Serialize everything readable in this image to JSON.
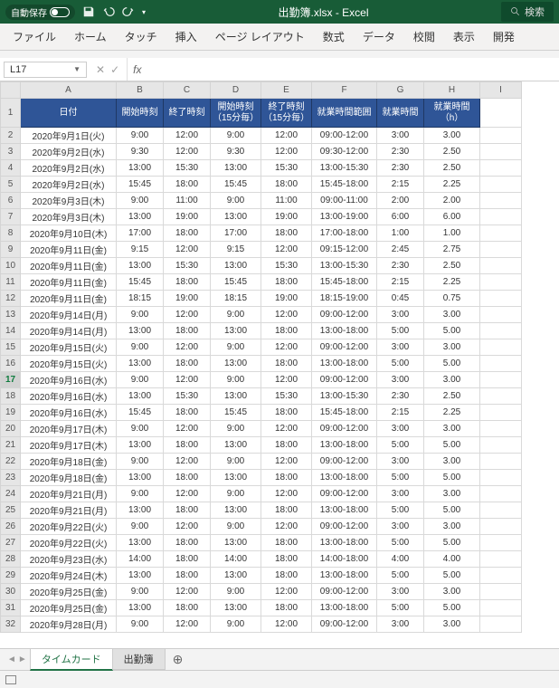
{
  "titlebar": {
    "autosave": "自動保存",
    "title": "出勤簿.xlsx - Excel",
    "search": "検索"
  },
  "ribbon": {
    "tabs": [
      "ファイル",
      "ホーム",
      "タッチ",
      "挿入",
      "ページ レイアウト",
      "数式",
      "データ",
      "校閲",
      "表示",
      "開発"
    ]
  },
  "namebox": "L17",
  "columns": [
    "A",
    "B",
    "C",
    "D",
    "E",
    "F",
    "G",
    "H",
    "I"
  ],
  "headers": [
    "日付",
    "開始時刻",
    "終了時刻",
    "開始時刻（15分毎）",
    "終了時刻（15分毎）",
    "就業時間範囲",
    "就業時間",
    "就業時間（h）"
  ],
  "rows": [
    [
      "2020年9月1日(火)",
      "9:00",
      "12:00",
      "9:00",
      "12:00",
      "09:00-12:00",
      "3:00",
      "3.00"
    ],
    [
      "2020年9月2日(水)",
      "9:30",
      "12:00",
      "9:30",
      "12:00",
      "09:30-12:00",
      "2:30",
      "2.50"
    ],
    [
      "2020年9月2日(水)",
      "13:00",
      "15:30",
      "13:00",
      "15:30",
      "13:00-15:30",
      "2:30",
      "2.50"
    ],
    [
      "2020年9月2日(水)",
      "15:45",
      "18:00",
      "15:45",
      "18:00",
      "15:45-18:00",
      "2:15",
      "2.25"
    ],
    [
      "2020年9月3日(木)",
      "9:00",
      "11:00",
      "9:00",
      "11:00",
      "09:00-11:00",
      "2:00",
      "2.00"
    ],
    [
      "2020年9月3日(木)",
      "13:00",
      "19:00",
      "13:00",
      "19:00",
      "13:00-19:00",
      "6:00",
      "6.00"
    ],
    [
      "2020年9月10日(木)",
      "17:00",
      "18:00",
      "17:00",
      "18:00",
      "17:00-18:00",
      "1:00",
      "1.00"
    ],
    [
      "2020年9月11日(金)",
      "9:15",
      "12:00",
      "9:15",
      "12:00",
      "09:15-12:00",
      "2:45",
      "2.75"
    ],
    [
      "2020年9月11日(金)",
      "13:00",
      "15:30",
      "13:00",
      "15:30",
      "13:00-15:30",
      "2:30",
      "2.50"
    ],
    [
      "2020年9月11日(金)",
      "15:45",
      "18:00",
      "15:45",
      "18:00",
      "15:45-18:00",
      "2:15",
      "2.25"
    ],
    [
      "2020年9月11日(金)",
      "18:15",
      "19:00",
      "18:15",
      "19:00",
      "18:15-19:00",
      "0:45",
      "0.75"
    ],
    [
      "2020年9月14日(月)",
      "9:00",
      "12:00",
      "9:00",
      "12:00",
      "09:00-12:00",
      "3:00",
      "3.00"
    ],
    [
      "2020年9月14日(月)",
      "13:00",
      "18:00",
      "13:00",
      "18:00",
      "13:00-18:00",
      "5:00",
      "5.00"
    ],
    [
      "2020年9月15日(火)",
      "9:00",
      "12:00",
      "9:00",
      "12:00",
      "09:00-12:00",
      "3:00",
      "3.00"
    ],
    [
      "2020年9月15日(火)",
      "13:00",
      "18:00",
      "13:00",
      "18:00",
      "13:00-18:00",
      "5:00",
      "5.00"
    ],
    [
      "2020年9月16日(水)",
      "9:00",
      "12:00",
      "9:00",
      "12:00",
      "09:00-12:00",
      "3:00",
      "3.00"
    ],
    [
      "2020年9月16日(水)",
      "13:00",
      "15:30",
      "13:00",
      "15:30",
      "13:00-15:30",
      "2:30",
      "2.50"
    ],
    [
      "2020年9月16日(水)",
      "15:45",
      "18:00",
      "15:45",
      "18:00",
      "15:45-18:00",
      "2:15",
      "2.25"
    ],
    [
      "2020年9月17日(木)",
      "9:00",
      "12:00",
      "9:00",
      "12:00",
      "09:00-12:00",
      "3:00",
      "3.00"
    ],
    [
      "2020年9月17日(木)",
      "13:00",
      "18:00",
      "13:00",
      "18:00",
      "13:00-18:00",
      "5:00",
      "5.00"
    ],
    [
      "2020年9月18日(金)",
      "9:00",
      "12:00",
      "9:00",
      "12:00",
      "09:00-12:00",
      "3:00",
      "3.00"
    ],
    [
      "2020年9月18日(金)",
      "13:00",
      "18:00",
      "13:00",
      "18:00",
      "13:00-18:00",
      "5:00",
      "5.00"
    ],
    [
      "2020年9月21日(月)",
      "9:00",
      "12:00",
      "9:00",
      "12:00",
      "09:00-12:00",
      "3:00",
      "3.00"
    ],
    [
      "2020年9月21日(月)",
      "13:00",
      "18:00",
      "13:00",
      "18:00",
      "13:00-18:00",
      "5:00",
      "5.00"
    ],
    [
      "2020年9月22日(火)",
      "9:00",
      "12:00",
      "9:00",
      "12:00",
      "09:00-12:00",
      "3:00",
      "3.00"
    ],
    [
      "2020年9月22日(火)",
      "13:00",
      "18:00",
      "13:00",
      "18:00",
      "13:00-18:00",
      "5:00",
      "5.00"
    ],
    [
      "2020年9月23日(水)",
      "14:00",
      "18:00",
      "14:00",
      "18:00",
      "14:00-18:00",
      "4:00",
      "4.00"
    ],
    [
      "2020年9月24日(木)",
      "13:00",
      "18:00",
      "13:00",
      "18:00",
      "13:00-18:00",
      "5:00",
      "5.00"
    ],
    [
      "2020年9月25日(金)",
      "9:00",
      "12:00",
      "9:00",
      "12:00",
      "09:00-12:00",
      "3:00",
      "3.00"
    ],
    [
      "2020年9月25日(金)",
      "13:00",
      "18:00",
      "13:00",
      "18:00",
      "13:00-18:00",
      "5:00",
      "5.00"
    ],
    [
      "2020年9月28日(月)",
      "9:00",
      "12:00",
      "9:00",
      "12:00",
      "09:00-12:00",
      "3:00",
      "3.00"
    ]
  ],
  "selectedRow": 17,
  "sheets": {
    "active": "タイムカード",
    "other": "出勤簿"
  }
}
